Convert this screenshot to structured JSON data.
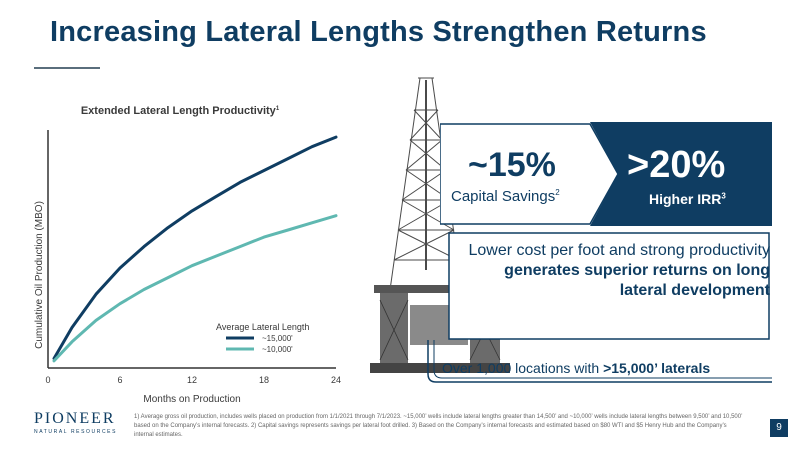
{
  "slide": {
    "title": "Increasing Lateral Lengths Strengthen Returns",
    "page_number": "9"
  },
  "chart_data": {
    "type": "line",
    "title": "Extended Lateral Length Productivity",
    "title_footnote": "1",
    "xlabel": "Months on Production",
    "ylabel": "Cumulative Oil Production (MBO)",
    "xlim": [
      0,
      24
    ],
    "x_ticks": [
      "0",
      "6",
      "12",
      "18",
      "24"
    ],
    "legend_title": "Average Lateral Length",
    "legend_position": "bottom-right",
    "grid": false,
    "series": [
      {
        "name": "~15,000'",
        "color": "#0f3d62",
        "x": [
          0.5,
          2,
          4,
          6,
          8,
          10,
          12,
          14,
          16,
          18,
          20,
          22,
          24
        ],
        "y": [
          0.04,
          0.17,
          0.31,
          0.42,
          0.51,
          0.59,
          0.66,
          0.72,
          0.78,
          0.83,
          0.88,
          0.93,
          0.97
        ]
      },
      {
        "name": "~10,000'",
        "color": "#5fb8b1",
        "x": [
          0.5,
          2,
          4,
          6,
          8,
          10,
          12,
          14,
          16,
          18,
          20,
          22,
          24
        ],
        "y": [
          0.03,
          0.11,
          0.2,
          0.27,
          0.33,
          0.38,
          0.43,
          0.47,
          0.51,
          0.55,
          0.58,
          0.61,
          0.64
        ]
      }
    ]
  },
  "callouts": {
    "capital_value": "~15%",
    "capital_label": "Capital Savings",
    "capital_footnote": "2",
    "irr_value": ">20%",
    "irr_label": "Higher IRR",
    "irr_footnote": "3",
    "statement_plain": "Lower cost per foot and strong productivity ",
    "statement_bold": "generates superior returns on long lateral development",
    "locations_plain": "Over 1,000 locations with ",
    "locations_bold": ">15,000’ laterals"
  },
  "logo": {
    "name": "PIONEER",
    "tagline": "NATURAL RESOURCES"
  },
  "footnote": "1) Average gross oil production, includes wells placed on production from 1/1/2021 through 7/1/2023. ~15,000’ wells include lateral lengths greater than 14,500’ and ~10,000’ wells include lateral lengths between 9,500’ and 10,500’ based on the Company’s internal forecasts. 2) Capital savings represents savings per lateral foot drilled. 3) Based on the Company’s internal forecasts and estimated based on $80 WTI and $5 Henry Hub and the Company’s internal estimates.",
  "colors": {
    "navy": "#0f3d62",
    "teal": "#5fb8b1"
  }
}
